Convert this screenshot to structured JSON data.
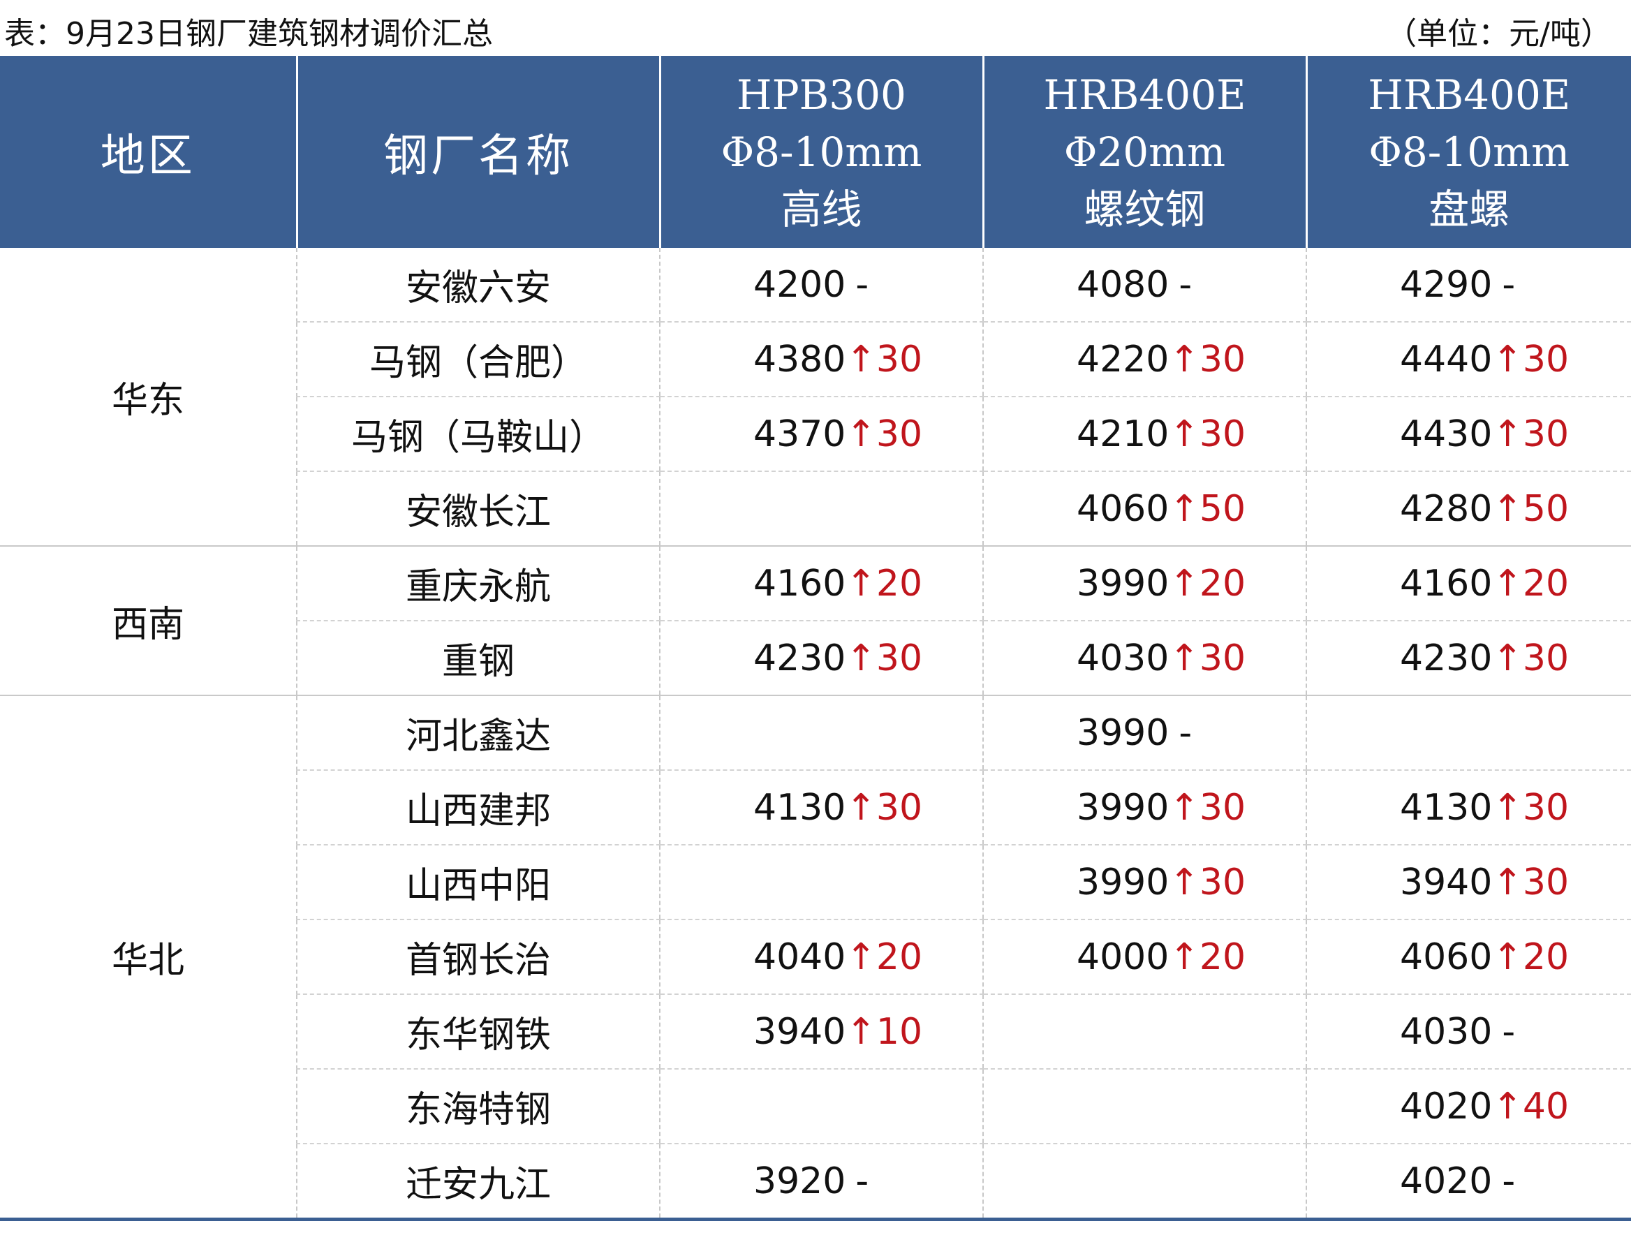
{
  "caption": {
    "title": "表：9月23日钢厂建筑钢材调价汇总",
    "unit": "（单位：元/吨）"
  },
  "header": {
    "region": "地区",
    "mill": "钢厂名称",
    "product1": {
      "line1": "HPB300",
      "line2": "Φ8-10mm",
      "line3": "高线"
    },
    "product2": {
      "line1": "HRB400E",
      "line2": "Φ20mm",
      "line3": "螺纹钢"
    },
    "product3": {
      "line1": "HRB400E",
      "line2": "Φ8-10mm",
      "line3": "盘螺"
    }
  },
  "colors": {
    "header_bg": "#3b5f92",
    "increase": "#c0151c"
  },
  "rows": [
    {
      "region": "华东",
      "mill": "安徽六安",
      "p1": {
        "price": "4200",
        "change": "-"
      },
      "p2": {
        "price": "4080",
        "change": "-"
      },
      "p3": {
        "price": "4290",
        "change": "-"
      }
    },
    {
      "region": "华东",
      "mill": "马钢（合肥）",
      "p1": {
        "price": "4380",
        "change": "↑30"
      },
      "p2": {
        "price": "4220",
        "change": "↑30"
      },
      "p3": {
        "price": "4440",
        "change": "↑30"
      }
    },
    {
      "region": "华东",
      "mill": "马钢（马鞍山）",
      "p1": {
        "price": "4370",
        "change": "↑30"
      },
      "p2": {
        "price": "4210",
        "change": "↑30"
      },
      "p3": {
        "price": "4430",
        "change": "↑30"
      }
    },
    {
      "region": "华东",
      "mill": "安徽长江",
      "p1": {
        "price": "",
        "change": ""
      },
      "p2": {
        "price": "4060",
        "change": "↑50"
      },
      "p3": {
        "price": "4280",
        "change": "↑50"
      }
    },
    {
      "region": "西南",
      "mill": "重庆永航",
      "p1": {
        "price": "4160",
        "change": "↑20"
      },
      "p2": {
        "price": "3990",
        "change": "↑20"
      },
      "p3": {
        "price": "4160",
        "change": "↑20"
      }
    },
    {
      "region": "西南",
      "mill": "重钢",
      "p1": {
        "price": "4230",
        "change": "↑30"
      },
      "p2": {
        "price": "4030",
        "change": "↑30"
      },
      "p3": {
        "price": "4230",
        "change": "↑30"
      }
    },
    {
      "region": "华北",
      "mill": "河北鑫达",
      "p1": {
        "price": "",
        "change": ""
      },
      "p2": {
        "price": "3990",
        "change": "-"
      },
      "p3": {
        "price": "",
        "change": ""
      }
    },
    {
      "region": "华北",
      "mill": "山西建邦",
      "p1": {
        "price": "4130",
        "change": "↑30"
      },
      "p2": {
        "price": "3990",
        "change": "↑30"
      },
      "p3": {
        "price": "4130",
        "change": "↑30"
      }
    },
    {
      "region": "华北",
      "mill": "山西中阳",
      "p1": {
        "price": "",
        "change": ""
      },
      "p2": {
        "price": "3990",
        "change": "↑30"
      },
      "p3": {
        "price": "3940",
        "change": "↑30"
      }
    },
    {
      "region": "华北",
      "mill": "首钢长治",
      "p1": {
        "price": "4040",
        "change": "↑20"
      },
      "p2": {
        "price": "4000",
        "change": "↑20"
      },
      "p3": {
        "price": "4060",
        "change": "↑20"
      }
    },
    {
      "region": "华北",
      "mill": "东华钢铁",
      "p1": {
        "price": "3940",
        "change": "↑10"
      },
      "p2": {
        "price": "",
        "change": ""
      },
      "p3": {
        "price": "4030",
        "change": "-"
      }
    },
    {
      "region": "华北",
      "mill": "东海特钢",
      "p1": {
        "price": "",
        "change": ""
      },
      "p2": {
        "price": "",
        "change": ""
      },
      "p3": {
        "price": "4020",
        "change": "↑40"
      }
    },
    {
      "region": "华北",
      "mill": "迁安九江",
      "p1": {
        "price": "3920",
        "change": "-"
      },
      "p2": {
        "price": "",
        "change": ""
      },
      "p3": {
        "price": "4020",
        "change": "-"
      }
    }
  ]
}
